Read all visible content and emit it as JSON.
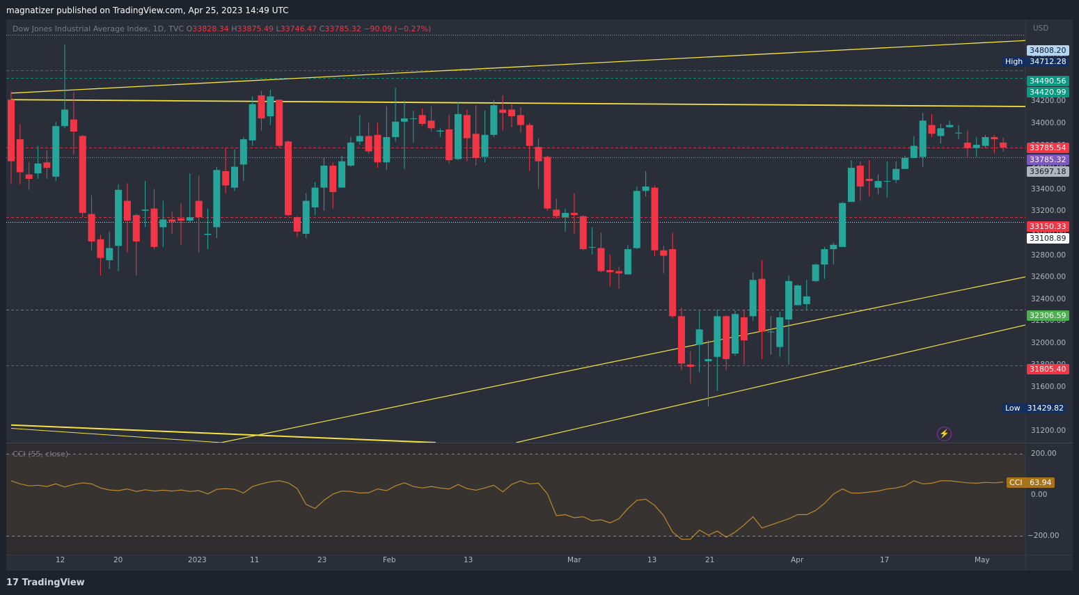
{
  "header": {
    "published": "magnatizer published on TradingView.com, Apr 25, 2023 14:49 UTC"
  },
  "legend": {
    "symbol": "Dow Jones Industrial Average Index, 1D, TVC",
    "open_label": "O",
    "open": "33828.34",
    "high_label": "H",
    "high": "33875.49",
    "low_label": "L",
    "low": "33746.47",
    "close_label": "C",
    "close": "33785.32",
    "change": "−90.09 (−0.27%)"
  },
  "price_axis": {
    "currency": "USD",
    "ticks": [
      "34600.00",
      "34400.00",
      "34200.00",
      "34000.00",
      "33800.00",
      "33600.00",
      "33400.00",
      "33200.00",
      "33000.00",
      "32800.00",
      "32600.00",
      "32400.00",
      "32200.00",
      "32000.00",
      "31800.00",
      "31600.00",
      "31400.00",
      "31200.00"
    ]
  },
  "price_tags": [
    {
      "text": "34808.20",
      "bg": "#b2d7f5",
      "fg": "#131722"
    },
    {
      "prefix": "High",
      "text": "34712.28",
      "bg": "#132f5e",
      "fg": "#ffffff"
    },
    {
      "text": "34490.56",
      "bg": "#089981",
      "fg": "#ffffff"
    },
    {
      "text": "34420.99",
      "bg": "#089981",
      "fg": "#ffffff"
    },
    {
      "text": "33785.54",
      "bg": "#f23645",
      "fg": "#ffffff"
    },
    {
      "text": "33785.32",
      "bg": "#7e57c2",
      "fg": "#ffffff"
    },
    {
      "text": "33697.18",
      "bg": "#b2b5be",
      "fg": "#131722"
    },
    {
      "text": "33150.33",
      "bg": "#f23645",
      "fg": "#ffffff"
    },
    {
      "text": "33108.89",
      "bg": "#ffffff",
      "fg": "#131722"
    },
    {
      "text": "32306.59",
      "bg": "#4caf50",
      "fg": "#ffffff"
    },
    {
      "text": "31805.40",
      "bg": "#f23645",
      "fg": "#ffffff"
    },
    {
      "prefix": "Low",
      "text": "31429.82",
      "bg": "#132f5e",
      "fg": "#ffffff"
    }
  ],
  "cci": {
    "label": "CCI (55, close)",
    "ticks": [
      "200.00",
      "0.00",
      "−200.00"
    ],
    "tag_prefix": "CCI",
    "tag_value": "63.94",
    "values": [
      70,
      55,
      45,
      48,
      42,
      55,
      40,
      52,
      60,
      55,
      35,
      25,
      22,
      30,
      18,
      26,
      20,
      24,
      20,
      25,
      18,
      22,
      6,
      28,
      32,
      28,
      10,
      42,
      55,
      65,
      70,
      60,
      32,
      -45,
      -65,
      -25,
      5,
      20,
      18,
      10,
      12,
      30,
      22,
      45,
      60,
      42,
      35,
      42,
      35,
      30,
      52,
      32,
      24,
      35,
      48,
      16,
      52,
      70,
      55,
      58,
      6,
      -100,
      -95,
      -110,
      -105,
      -125,
      -120,
      -135,
      -115,
      -65,
      -25,
      -20,
      -50,
      -100,
      -180,
      -215,
      -215,
      -170,
      -195,
      -175,
      -205,
      -180,
      -145,
      -105,
      -160,
      -145,
      -130,
      -115,
      -95,
      -95,
      -75,
      -40,
      5,
      30,
      10,
      10,
      15,
      20,
      30,
      35,
      45,
      70,
      55,
      58,
      70,
      70,
      65,
      60,
      58,
      62,
      60,
      63.94
    ]
  },
  "time_axis": {
    "labels": [
      "12",
      "20",
      "2023",
      "11",
      "23",
      "Feb",
      "13",
      "Mar",
      "13",
      "21",
      "Apr",
      "17",
      "May"
    ]
  },
  "chart_data": {
    "type": "candlestick",
    "symbol": "Dow Jones Industrial Average Index",
    "interval": "1D",
    "currency": "USD",
    "ylim": [
      31100,
      34950
    ],
    "candles": [
      [
        34220,
        33660,
        34300,
        33460
      ],
      [
        33860,
        33560,
        34000,
        33450
      ],
      [
        33540,
        33500,
        33650,
        33400
      ],
      [
        33550,
        33640,
        33800,
        33500
      ],
      [
        33650,
        33600,
        33760,
        33500
      ],
      [
        33520,
        33980,
        34020,
        33480
      ],
      [
        33980,
        34130,
        34720,
        33960
      ],
      [
        34040,
        33930,
        34290,
        33720
      ],
      [
        33890,
        33190,
        33900,
        33150
      ],
      [
        33180,
        32930,
        33350,
        32850
      ],
      [
        32950,
        32780,
        32990,
        32620
      ],
      [
        32760,
        32870,
        33020,
        32680
      ],
      [
        32890,
        33400,
        33450,
        32660
      ],
      [
        33300,
        33120,
        33460,
        32830
      ],
      [
        33170,
        32930,
        33180,
        32620
      ],
      [
        33210,
        33220,
        33480,
        33060
      ],
      [
        33230,
        32880,
        33410,
        32860
      ],
      [
        33060,
        33130,
        33300,
        32880
      ],
      [
        33130,
        33110,
        33200,
        33000
      ],
      [
        33140,
        33120,
        33280,
        32900
      ],
      [
        33120,
        33150,
        33550,
        33100
      ],
      [
        33300,
        33150,
        33530,
        32830
      ],
      [
        32990,
        33000,
        33230,
        32860
      ],
      [
        33060,
        33580,
        33610,
        32960
      ],
      [
        33570,
        33440,
        33780,
        33370
      ],
      [
        33420,
        33610,
        33770,
        33390
      ],
      [
        33630,
        33860,
        33880,
        33480
      ],
      [
        33850,
        34180,
        34250,
        33800
      ],
      [
        34260,
        34050,
        34300,
        33940
      ],
      [
        34070,
        34250,
        34310,
        33990
      ],
      [
        34220,
        33800,
        34210,
        33780
      ],
      [
        33840,
        33170,
        33850,
        33160
      ],
      [
        33150,
        33020,
        33160,
        32970
      ],
      [
        33000,
        33300,
        33370,
        32960
      ],
      [
        33240,
        33420,
        33470,
        33170
      ],
      [
        33420,
        33620,
        33690,
        33210
      ],
      [
        33620,
        33380,
        33650,
        33230
      ],
      [
        33420,
        33660,
        33710,
        33420
      ],
      [
        33620,
        33830,
        33880,
        33610
      ],
      [
        33840,
        33890,
        34080,
        33810
      ],
      [
        33890,
        33750,
        34010,
        33730
      ],
      [
        33900,
        33650,
        34010,
        33600
      ],
      [
        33650,
        33880,
        34160,
        33580
      ],
      [
        33880,
        34020,
        34330,
        33840
      ],
      [
        34020,
        34050,
        34210,
        33590
      ],
      [
        34050,
        34050,
        34120,
        33830
      ],
      [
        34080,
        34000,
        34140,
        33980
      ],
      [
        34030,
        33960,
        34160,
        33930
      ],
      [
        33930,
        33940,
        33960,
        33880
      ],
      [
        33950,
        33670,
        34080,
        33640
      ],
      [
        33680,
        34090,
        34200,
        33670
      ],
      [
        34080,
        33870,
        34130,
        33660
      ],
      [
        33910,
        33690,
        34170,
        33620
      ],
      [
        33700,
        33900,
        34120,
        33650
      ],
      [
        33900,
        34170,
        34220,
        33880
      ],
      [
        34130,
        34100,
        34260,
        33940
      ],
      [
        34130,
        34070,
        34180,
        33970
      ],
      [
        34080,
        33990,
        34150,
        33920
      ],
      [
        33990,
        33800,
        34010,
        33570
      ],
      [
        33790,
        33660,
        33870,
        33410
      ],
      [
        33700,
        33230,
        33710,
        33210
      ],
      [
        33220,
        33160,
        33320,
        33140
      ],
      [
        33150,
        33190,
        33230,
        33020
      ],
      [
        33190,
        33170,
        33370,
        33000
      ],
      [
        33160,
        32860,
        33170,
        32850
      ],
      [
        32880,
        32880,
        33060,
        32810
      ],
      [
        32870,
        32660,
        33010,
        32650
      ],
      [
        32670,
        32650,
        32810,
        32520
      ],
      [
        32660,
        32640,
        32700,
        32500
      ],
      [
        32630,
        32860,
        32900,
        32630
      ],
      [
        32870,
        33390,
        33430,
        32860
      ],
      [
        33390,
        33430,
        33570,
        33340
      ],
      [
        33420,
        32850,
        33440,
        32800
      ],
      [
        32850,
        32800,
        32890,
        32640
      ],
      [
        32860,
        32250,
        33010,
        32230
      ],
      [
        32250,
        31820,
        32330,
        31760
      ],
      [
        31810,
        31790,
        31930,
        31640
      ],
      [
        31990,
        32130,
        32300,
        31740
      ],
      [
        31840,
        31860,
        32030,
        31430
      ],
      [
        31880,
        32250,
        32310,
        31570
      ],
      [
        32250,
        31860,
        32260,
        31760
      ],
      [
        31910,
        32270,
        32300,
        31890
      ],
      [
        32240,
        32030,
        32310,
        31810
      ],
      [
        32250,
        32580,
        32650,
        32210
      ],
      [
        32590,
        32110,
        32760,
        31860
      ],
      [
        32110,
        32110,
        32250,
        31900
      ],
      [
        31970,
        32240,
        32290,
        31880
      ],
      [
        32220,
        32570,
        32620,
        31810
      ],
      [
        32350,
        32530,
        32540,
        32370
      ],
      [
        32360,
        32430,
        32580,
        32310
      ],
      [
        32570,
        32720,
        32730,
        32560
      ],
      [
        32720,
        32860,
        32880,
        32590
      ],
      [
        32860,
        32900,
        32920,
        32720
      ],
      [
        32880,
        33280,
        33290,
        32880
      ],
      [
        33290,
        33600,
        33670,
        33290
      ],
      [
        33620,
        33430,
        33660,
        33300
      ],
      [
        33500,
        33480,
        33670,
        33340
      ],
      [
        33420,
        33480,
        33540,
        33360
      ],
      [
        33480,
        33480,
        33660,
        33330
      ],
      [
        33490,
        33590,
        33660,
        33460
      ],
      [
        33590,
        33690,
        33710,
        33590
      ],
      [
        33690,
        33800,
        33890,
        33710
      ],
      [
        33700,
        34030,
        34100,
        33610
      ],
      [
        33990,
        33910,
        34090,
        33880
      ],
      [
        33890,
        33960,
        34000,
        33820
      ],
      [
        33970,
        33990,
        34030,
        33980
      ],
      [
        33920,
        33920,
        33990,
        33860
      ],
      [
        33830,
        33780,
        33940,
        33700
      ],
      [
        33780,
        33810,
        33880,
        33700
      ],
      [
        33800,
        33880,
        33900,
        33780
      ],
      [
        33880,
        33860,
        33900,
        33730
      ],
      [
        33830,
        33785.32,
        33875.49,
        33746.47
      ]
    ],
    "horizontal_levels": [
      {
        "price": 34808.2,
        "style": "dotted",
        "color": "#b2b5be"
      },
      {
        "price": 34490.56,
        "style": "dashed",
        "color": "#089981"
      },
      {
        "price": 34420.99,
        "style": "dashed",
        "color": "#089981"
      },
      {
        "price": 33785.54,
        "style": "dashed",
        "color": "#f23645"
      },
      {
        "price": 33697.18,
        "style": "dotted",
        "color": "#b2b5be"
      },
      {
        "price": 33150.33,
        "style": "dashed",
        "color": "#f23645"
      },
      {
        "price": 33108.89,
        "style": "dotted",
        "color": "#ffffff"
      },
      {
        "price": 32306.59,
        "style": "dashed",
        "color": "#4caf50"
      },
      {
        "price": 31805.4,
        "style": "dashed",
        "color": "#f23645"
      }
    ],
    "trendlines": [
      {
        "from": [
          0,
          34280
        ],
        "to": [
          147,
          34900
        ],
        "color": "#f7e43d",
        "width": 1.3
      },
      {
        "from": [
          0,
          34220
        ],
        "to": [
          147,
          34140
        ],
        "color": "#f7e43d",
        "width": 1.8
      },
      {
        "from": [
          0,
          31260
        ],
        "to": [
          47.5,
          31100
        ],
        "color": "#f7e43d",
        "width": 2
      },
      {
        "from": [
          0,
          31230
        ],
        "to": [
          23.5,
          31100
        ],
        "color": "#f7e43d",
        "width": 1
      },
      {
        "from": [
          23.5,
          31100
        ],
        "to": [
          147,
          33170
        ],
        "color": "#f7e43d",
        "width": 1.2
      },
      {
        "from": [
          56.5,
          31100
        ],
        "to": [
          147,
          32800
        ],
        "color": "#f7e43d",
        "width": 1.2
      }
    ],
    "colors": {
      "up": "#26a69a",
      "down": "#f23645",
      "background": "#2a2e39"
    }
  }
}
